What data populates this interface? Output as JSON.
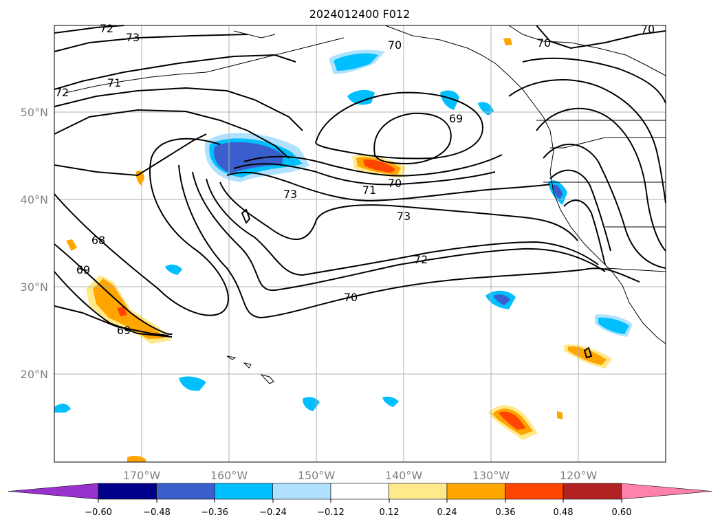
{
  "title": "2024012400 F012",
  "map": {
    "x_ticks": [
      "170°W",
      "160°W",
      "150°W",
      "140°W",
      "130°W",
      "120°W"
    ],
    "y_ticks": [
      "50°N",
      "40°N",
      "30°N",
      "20°N"
    ],
    "grid": true,
    "contour_labels": [
      "72",
      "73",
      "70",
      "70",
      "70",
      "72",
      "71",
      "69",
      "70",
      "71",
      "73",
      "73",
      "68",
      "72",
      "69",
      "70",
      "69"
    ]
  },
  "colorbar": {
    "ticks": [
      "−0.60",
      "−0.48",
      "−0.36",
      "−0.24",
      "−0.12",
      "0.12",
      "0.24",
      "0.36",
      "0.48",
      "0.60"
    ],
    "colors": [
      "#9932cc",
      "#00008b",
      "#3a5fcd",
      "#00bfff",
      "#b0e2ff",
      "#ffffff",
      "#ffe98a",
      "#ffa500",
      "#ff4500",
      "#b22222",
      "#ff82ab"
    ]
  }
}
